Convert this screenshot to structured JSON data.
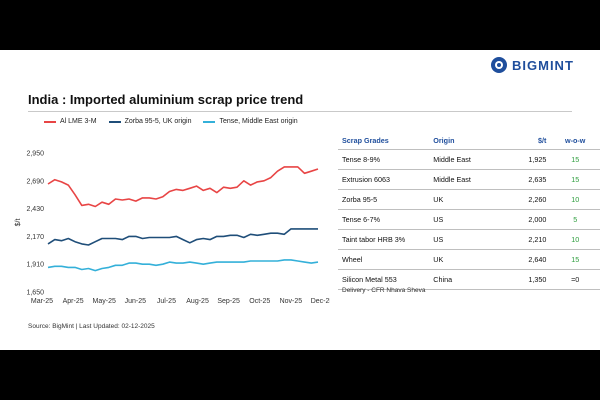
{
  "brand": {
    "name": "BIGMINT",
    "icon": "bigmint-logo-icon",
    "color": "#1f4e9c"
  },
  "title": "India : Imported aluminium scrap price trend",
  "source": "Source: BigMint | Last Updated: 02-12-2025",
  "note": "Delivery - CFR Nhava Sheva",
  "chart_data": {
    "type": "line",
    "ylabel": "$/t",
    "ylim": [
      1650,
      2950
    ],
    "yticks": [
      1650,
      1910,
      2170,
      2430,
      2690,
      2950
    ],
    "yticks_labels": [
      "1,650",
      "1,910",
      "2,170",
      "2,430",
      "2,690",
      "2,950"
    ],
    "xticks_labels": [
      "Mar-25",
      "Apr-25",
      "May-25",
      "Jun-25",
      "Jul-25",
      "Aug-25",
      "Sep-25",
      "Oct-25",
      "Nov-25",
      "Dec-25"
    ],
    "grid": false,
    "legend_position": "top",
    "series": [
      {
        "name": "Al LME 3-M",
        "color": "#e84545",
        "values": [
          2660,
          2700,
          2680,
          2650,
          2560,
          2460,
          2470,
          2450,
          2490,
          2470,
          2520,
          2510,
          2520,
          2500,
          2530,
          2530,
          2520,
          2540,
          2590,
          2610,
          2600,
          2620,
          2640,
          2600,
          2620,
          2580,
          2630,
          2620,
          2630,
          2690,
          2650,
          2680,
          2690,
          2720,
          2780,
          2820,
          2820,
          2820,
          2760,
          2780,
          2800
        ]
      },
      {
        "name": "Zorba 95-5, UK origin",
        "color": "#1f4e79",
        "values": [
          2100,
          2140,
          2130,
          2150,
          2120,
          2100,
          2090,
          2120,
          2150,
          2150,
          2150,
          2140,
          2170,
          2170,
          2150,
          2160,
          2160,
          2160,
          2160,
          2170,
          2140,
          2110,
          2140,
          2150,
          2140,
          2170,
          2170,
          2180,
          2180,
          2160,
          2190,
          2180,
          2190,
          2200,
          2200,
          2190,
          2240,
          2240,
          2240,
          2240,
          2240
        ]
      },
      {
        "name": "Tense, Middle East origin",
        "color": "#34b0d9",
        "values": [
          1880,
          1890,
          1890,
          1880,
          1880,
          1860,
          1870,
          1850,
          1870,
          1880,
          1900,
          1900,
          1920,
          1920,
          1910,
          1910,
          1900,
          1910,
          1930,
          1920,
          1920,
          1930,
          1920,
          1910,
          1920,
          1930,
          1930,
          1930,
          1930,
          1930,
          1940,
          1940,
          1940,
          1940,
          1940,
          1950,
          1950,
          1940,
          1930,
          1920,
          1930
        ]
      }
    ]
  },
  "table": {
    "headers": [
      "Scrap Grades",
      "Origin",
      "$/t",
      "w-o-w"
    ],
    "rows": [
      {
        "grade": "Tense 8-9%",
        "origin": "Middle East",
        "price": "1,925",
        "wow": "15"
      },
      {
        "grade": "Extrusion 6063",
        "origin": "Middle East",
        "price": "2,635",
        "wow": "15"
      },
      {
        "grade": "Zorba 95-5",
        "origin": "UK",
        "price": "2,260",
        "wow": "10"
      },
      {
        "grade": "Tense 6-7%",
        "origin": "US",
        "price": "2,000",
        "wow": "5"
      },
      {
        "grade": "Taint tabor HRB 3%",
        "origin": "US",
        "price": "2,210",
        "wow": "10"
      },
      {
        "grade": "Wheel",
        "origin": "UK",
        "price": "2,640",
        "wow": "15"
      },
      {
        "grade": "Silicon Metal 553",
        "origin": "China",
        "price": "1,350",
        "wow": "=0"
      }
    ]
  }
}
